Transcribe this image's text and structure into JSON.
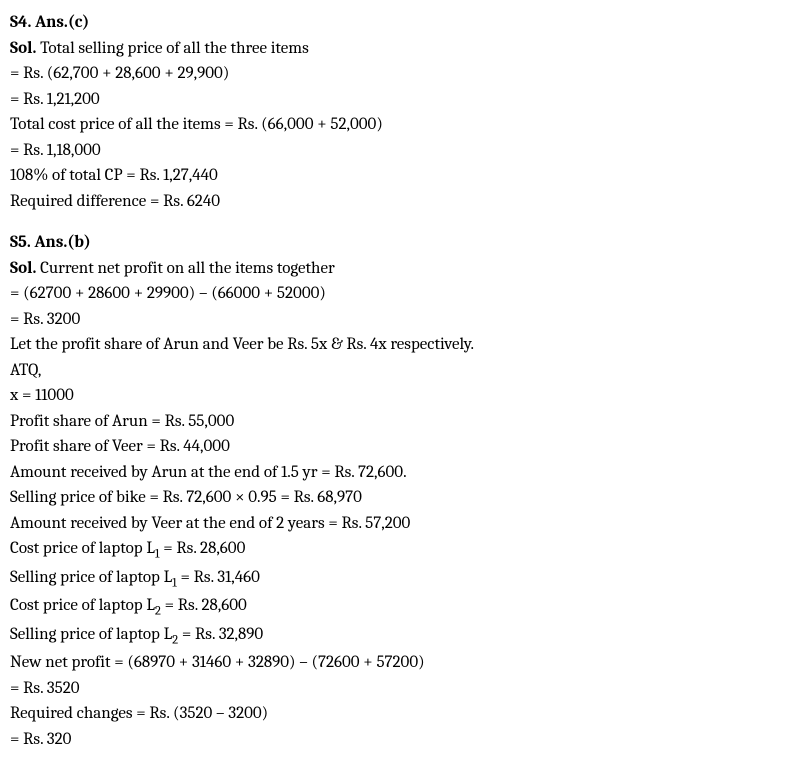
{
  "s4": {
    "header": "S4. Ans.(c)",
    "sol_label": "Sol.",
    "sol_text": " Total selling price of all the three items",
    "lines": [
      "= Rs. (62,700 + 28,600 + 29,900)",
      "= Rs. 1,21,200",
      "Total cost price of all the items = Rs. (66,000 + 52,000)",
      "= Rs. 1,18,000",
      "108% of total CP = Rs. 1,27,440",
      "Required difference = Rs. 6240"
    ]
  },
  "s5": {
    "header": "S5. Ans.(b)",
    "sol_label": "Sol.",
    "sol_text": " Current net profit on all the items together",
    "lines": [
      "= (62700 + 28600 + 29900) – (66000 + 52000)",
      "= Rs. 3200",
      "Let the profit share of Arun and Veer be Rs. 5x & Rs. 4x respectively.",
      "ATQ,",
      "x = 11000",
      "Profit share of Arun = Rs. 55,000",
      "Profit share of Veer = Rs. 44,000",
      "Amount received by Arun at the end of 1.5 yr = Rs. 72,600.",
      "Selling price of bike = Rs. 72,600 × 0.95 = Rs. 68,970",
      "Amount received by Veer at the end of 2 years = Rs. 57,200"
    ],
    "l1_cost_prefix": "Cost price of laptop L",
    "l1_cost_suffix": " = Rs. 28,600",
    "l1_sell_prefix": "Selling price of laptop L",
    "l1_sell_suffix": " = Rs. 31,460",
    "l2_cost_prefix": "Cost price of laptop L",
    "l2_cost_suffix": " = Rs. 28,600",
    "l2_sell_prefix": "Selling price of laptop L",
    "l2_sell_suffix": " = Rs. 32,890",
    "sub1": "1",
    "sub2": "2",
    "tail_lines": [
      "New net profit = (68970 + 31460 + 32890) – (72600 + 57200)",
      "= Rs. 3520",
      "Required changes = Rs. (3520 – 3200)",
      "= Rs. 320"
    ]
  }
}
